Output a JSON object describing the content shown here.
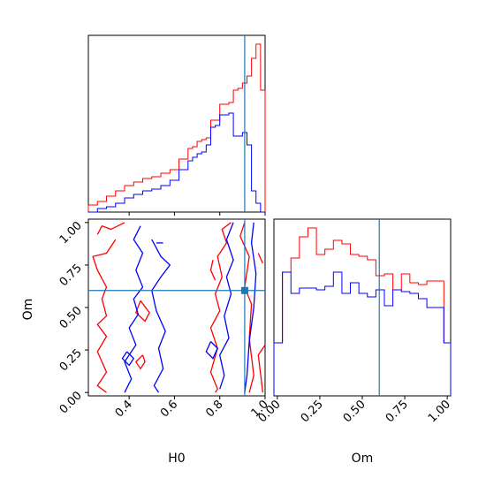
{
  "chart_data": [
    {
      "type": "histogram",
      "panel": "H0 marginal",
      "xlim": [
        0.22,
        1.0
      ],
      "truth": 0.91,
      "bin_edges": [
        0.22,
        0.26,
        0.3,
        0.34,
        0.38,
        0.42,
        0.46,
        0.5,
        0.54,
        0.58,
        0.62,
        0.64,
        0.66,
        0.68,
        0.7,
        0.72,
        0.74,
        0.76,
        0.78,
        0.8,
        0.82,
        0.84,
        0.86,
        0.88,
        0.9,
        0.92,
        0.94,
        0.96,
        0.98,
        1.0
      ],
      "series": [
        {
          "color": "#ff0000",
          "values": [
            0.04,
            0.06,
            0.09,
            0.12,
            0.15,
            0.17,
            0.19,
            0.2,
            0.22,
            0.24,
            0.3,
            0.3,
            0.36,
            0.37,
            0.4,
            0.41,
            0.42,
            0.52,
            0.52,
            0.61,
            0.61,
            0.62,
            0.69,
            0.7,
            0.73,
            0.77,
            0.87,
            0.95,
            0.69
          ]
        },
        {
          "color": "#0000ff",
          "values": [
            0.0,
            0.02,
            0.03,
            0.05,
            0.08,
            0.1,
            0.12,
            0.13,
            0.15,
            0.18,
            0.24,
            0.24,
            0.29,
            0.31,
            0.33,
            0.34,
            0.38,
            0.48,
            0.49,
            0.55,
            0.55,
            0.56,
            0.43,
            0.43,
            0.45,
            0.38,
            0.12,
            0.05,
            0.0
          ]
        }
      ]
    },
    {
      "type": "contour",
      "panel": "H0 vs Om",
      "xlim": [
        0.22,
        1.0
      ],
      "ylim": [
        -0.02,
        1.02
      ],
      "truth": [
        0.91,
        0.6
      ],
      "xticks": [
        "0.4",
        "0.6",
        "0.8",
        "1.0"
      ],
      "yticks": [
        "0.00",
        "0.25",
        "0.50",
        "0.75",
        "1.00"
      ],
      "xlabel": "H0",
      "ylabel": "Om",
      "series": [
        {
          "color": "#ff0000",
          "paths": [
            [
              [
                0.34,
                0.9
              ],
              [
                0.3,
                0.82
              ],
              [
                0.24,
                0.8
              ],
              [
                0.26,
                0.72
              ],
              [
                0.3,
                0.62
              ],
              [
                0.28,
                0.55
              ],
              [
                0.3,
                0.45
              ],
              [
                0.26,
                0.4
              ],
              [
                0.3,
                0.33
              ],
              [
                0.26,
                0.24
              ],
              [
                0.3,
                0.12
              ],
              [
                0.26,
                0.04
              ],
              [
                0.3,
                0.0
              ]
            ],
            [
              [
                0.38,
                1.0
              ],
              [
                0.32,
                0.96
              ],
              [
                0.28,
                0.98
              ],
              [
                0.26,
                0.93
              ]
            ],
            [
              [
                0.45,
                0.54
              ],
              [
                0.43,
                0.47
              ],
              [
                0.47,
                0.42
              ],
              [
                0.49,
                0.47
              ],
              [
                0.45,
                0.54
              ]
            ],
            [
              [
                0.85,
                1.0
              ],
              [
                0.81,
                0.96
              ],
              [
                0.83,
                0.88
              ],
              [
                0.79,
                0.8
              ],
              [
                0.81,
                0.68
              ],
              [
                0.78,
                0.58
              ],
              [
                0.8,
                0.48
              ],
              [
                0.76,
                0.38
              ],
              [
                0.79,
                0.26
              ],
              [
                0.76,
                0.12
              ],
              [
                0.79,
                0.02
              ],
              [
                0.78,
                0.0
              ]
            ],
            [
              [
                0.91,
                1.0
              ],
              [
                0.89,
                0.92
              ],
              [
                0.93,
                0.8
              ],
              [
                0.91,
                0.62
              ],
              [
                0.94,
                0.52
              ],
              [
                0.93,
                0.32
              ],
              [
                0.95,
                0.1
              ],
              [
                0.93,
                0.0
              ]
            ],
            [
              [
                1.0,
                0.28
              ],
              [
                0.97,
                0.22
              ],
              [
                0.99,
                0.0
              ]
            ],
            [
              [
                0.97,
                0.82
              ],
              [
                0.99,
                0.76
              ]
            ],
            [
              [
                0.77,
                0.78
              ],
              [
                0.76,
                0.72
              ],
              [
                0.78,
                0.66
              ]
            ],
            [
              [
                0.46,
                0.22
              ],
              [
                0.43,
                0.18
              ],
              [
                0.45,
                0.14
              ],
              [
                0.47,
                0.18
              ],
              [
                0.46,
                0.22
              ]
            ]
          ]
        },
        {
          "color": "#0000ff",
          "paths": [
            [
              [
                0.45,
                0.98
              ],
              [
                0.42,
                0.9
              ],
              [
                0.46,
                0.82
              ],
              [
                0.43,
                0.72
              ],
              [
                0.46,
                0.62
              ],
              [
                0.42,
                0.55
              ],
              [
                0.44,
                0.46
              ],
              [
                0.4,
                0.38
              ],
              [
                0.43,
                0.28
              ],
              [
                0.38,
                0.18
              ],
              [
                0.41,
                0.08
              ],
              [
                0.38,
                0.0
              ]
            ],
            [
              [
                0.5,
                0.9
              ],
              [
                0.54,
                0.8
              ],
              [
                0.58,
                0.75
              ],
              [
                0.54,
                0.68
              ],
              [
                0.5,
                0.6
              ],
              [
                0.52,
                0.48
              ],
              [
                0.56,
                0.36
              ],
              [
                0.53,
                0.26
              ],
              [
                0.55,
                0.14
              ],
              [
                0.51,
                0.04
              ],
              [
                0.53,
                0.0
              ]
            ],
            [
              [
                0.52,
                0.88
              ],
              [
                0.55,
                0.88
              ]
            ],
            [
              [
                0.86,
                1.0
              ],
              [
                0.83,
                0.9
              ],
              [
                0.86,
                0.78
              ],
              [
                0.83,
                0.68
              ],
              [
                0.85,
                0.58
              ],
              [
                0.82,
                0.45
              ],
              [
                0.84,
                0.32
              ],
              [
                0.8,
                0.22
              ],
              [
                0.82,
                0.1
              ],
              [
                0.8,
                0.02
              ]
            ],
            [
              [
                0.95,
                1.0
              ],
              [
                0.94,
                0.88
              ],
              [
                0.96,
                0.7
              ],
              [
                0.95,
                0.5
              ],
              [
                0.93,
                0.3
              ],
              [
                0.92,
                0.1
              ],
              [
                0.91,
                0.0
              ]
            ],
            [
              [
                0.76,
                0.3
              ],
              [
                0.74,
                0.24
              ],
              [
                0.77,
                0.2
              ],
              [
                0.79,
                0.26
              ],
              [
                0.76,
                0.3
              ]
            ],
            [
              [
                0.39,
                0.24
              ],
              [
                0.37,
                0.2
              ],
              [
                0.4,
                0.16
              ],
              [
                0.42,
                0.2
              ],
              [
                0.39,
                0.24
              ]
            ]
          ]
        }
      ]
    },
    {
      "type": "histogram",
      "panel": "Om marginal",
      "xlim": [
        -0.02,
        1.02
      ],
      "truth": 0.6,
      "xticks": [
        "0.00",
        "0.25",
        "0.50",
        "0.75",
        "1.00"
      ],
      "xlabel": "Om",
      "bin_edges": [
        -0.02,
        0.03,
        0.08,
        0.13,
        0.18,
        0.23,
        0.28,
        0.33,
        0.38,
        0.43,
        0.48,
        0.53,
        0.58,
        0.63,
        0.68,
        0.73,
        0.78,
        0.83,
        0.88,
        0.93,
        0.98,
        1.02
      ],
      "series": [
        {
          "color": "#ff0000",
          "values": [
            0.3,
            0.7,
            0.78,
            0.9,
            0.95,
            0.8,
            0.83,
            0.88,
            0.86,
            0.8,
            0.79,
            0.77,
            0.68,
            0.69,
            0.6,
            0.69,
            0.64,
            0.63,
            0.65,
            0.65,
            0.3
          ]
        },
        {
          "color": "#0000ff",
          "values": [
            0.3,
            0.7,
            0.58,
            0.61,
            0.61,
            0.6,
            0.62,
            0.7,
            0.58,
            0.64,
            0.58,
            0.56,
            0.6,
            0.51,
            0.6,
            0.59,
            0.58,
            0.55,
            0.5,
            0.5,
            0.3
          ]
        }
      ]
    }
  ]
}
